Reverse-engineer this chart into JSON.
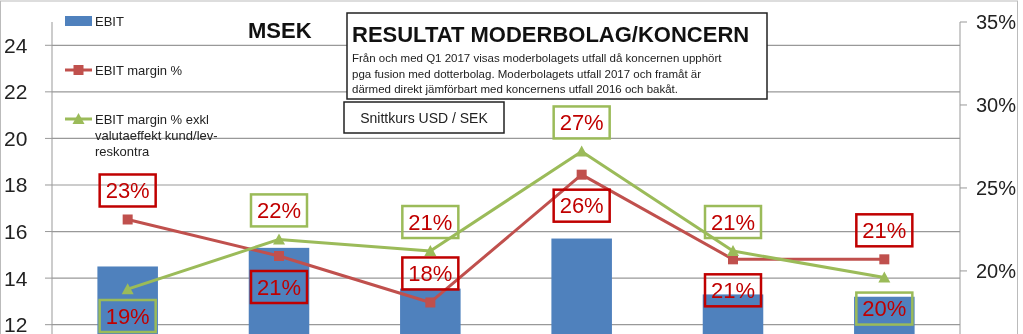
{
  "chart_data": {
    "type": "bar",
    "title": "RESULTAT MODERBOLAG/KONCERN",
    "ylabel": "MSEK",
    "annotations": [
      "Från och med Q1 2017 visas moderbolagets utfall då koncernen upphört pga fusion med dotterbolag. Moderbolagets utfall 2017 och framåt är därmed direkt jämförbart med koncernens utfall 2016 och bakåt.",
      "Snittkurs USD / SEK"
    ],
    "categories": [
      null,
      null,
      null,
      null,
      null,
      null
    ],
    "series": [
      {
        "name": "EBIT",
        "color": "#4f81bd",
        "values": [
          14.5,
          15.3,
          13.55,
          15.7,
          13.3,
          13.2
        ]
      },
      {
        "name": "EBIT margin %",
        "type": "line",
        "axis": "y2",
        "marker": "square",
        "color": "#c0504d",
        "values": [
          23.1,
          20.9,
          18.1,
          25.8,
          20.7,
          20.7
        ],
        "value_labels": [
          "23%",
          "21%",
          "18%",
          "26%",
          "21%",
          "21%"
        ]
      },
      {
        "name": "EBIT margin % exkl valutaeffekt kund/lev-reskontra",
        "type": "line",
        "axis": "y2",
        "marker": "triangle",
        "color": "#9bbb59",
        "values": [
          18.9,
          21.9,
          21.2,
          27.2,
          21.2,
          19.6
        ],
        "value_labels": [
          "19%",
          "22%",
          "21%",
          "27%",
          "21%",
          "20%"
        ]
      }
    ],
    "ylim": [
      11.6,
      25
    ],
    "yticks": [
      12,
      14,
      16,
      18,
      20,
      22,
      24
    ],
    "y2lim": [
      16.2,
      35
    ],
    "y2ticks": [
      {
        "value": 20,
        "label": "20%"
      },
      {
        "value": 25,
        "label": "25%"
      },
      {
        "value": 30,
        "label": "30%"
      },
      {
        "value": 35,
        "label": "35%"
      }
    ],
    "grid": "y",
    "legend": "top left"
  }
}
